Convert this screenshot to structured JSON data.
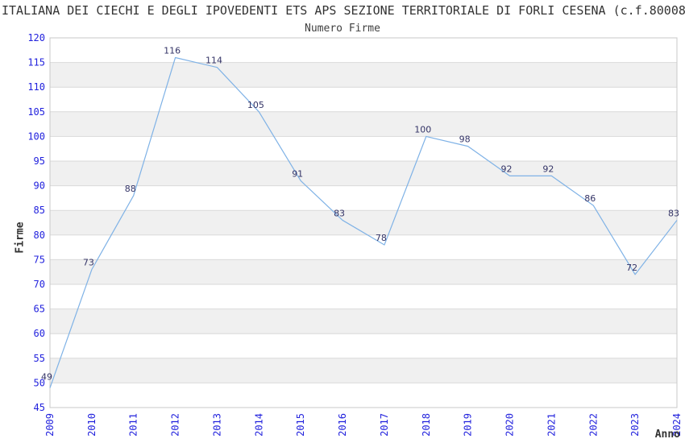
{
  "header": {
    "title": "ITALIANA DEI CIECHI E DEGLI IPOVEDENTI ETS APS SEZIONE TERRITORIALE DI FORLI CESENA (c.f.80008",
    "subtitle": "Numero Firme"
  },
  "axes": {
    "y_label": "Firme",
    "x_label": "Anno"
  },
  "chart_data": {
    "type": "line",
    "title": "ITALIANA DEI CIECHI E DEGLI IPOVEDENTI ETS APS SEZIONE TERRITORIALE DI FORLI CESENA (c.f.80008",
    "subtitle": "Numero Firme",
    "xlabel": "Anno",
    "ylabel": "Firme",
    "x": [
      "2009",
      "2010",
      "2011",
      "2012",
      "2013",
      "2014",
      "2015",
      "2016",
      "2017",
      "2018",
      "2019",
      "2020",
      "2021",
      "2022",
      "2023",
      "2024"
    ],
    "values": [
      49,
      73,
      88,
      116,
      114,
      105,
      91,
      83,
      78,
      100,
      98,
      92,
      92,
      86,
      72,
      83
    ],
    "ylim": [
      45,
      120
    ],
    "ytick_step": 5,
    "grid": true,
    "banded_background": true,
    "legend_position": "none",
    "colors": {
      "line": "#7fb2e6",
      "tick_label": "#2222dd",
      "data_label": "#333366",
      "band_fill": "#f0f0f0",
      "gridline": "#d9d9d9",
      "plot_border": "#c8c8c8",
      "text": "#333333",
      "background": "#ffffff"
    }
  }
}
